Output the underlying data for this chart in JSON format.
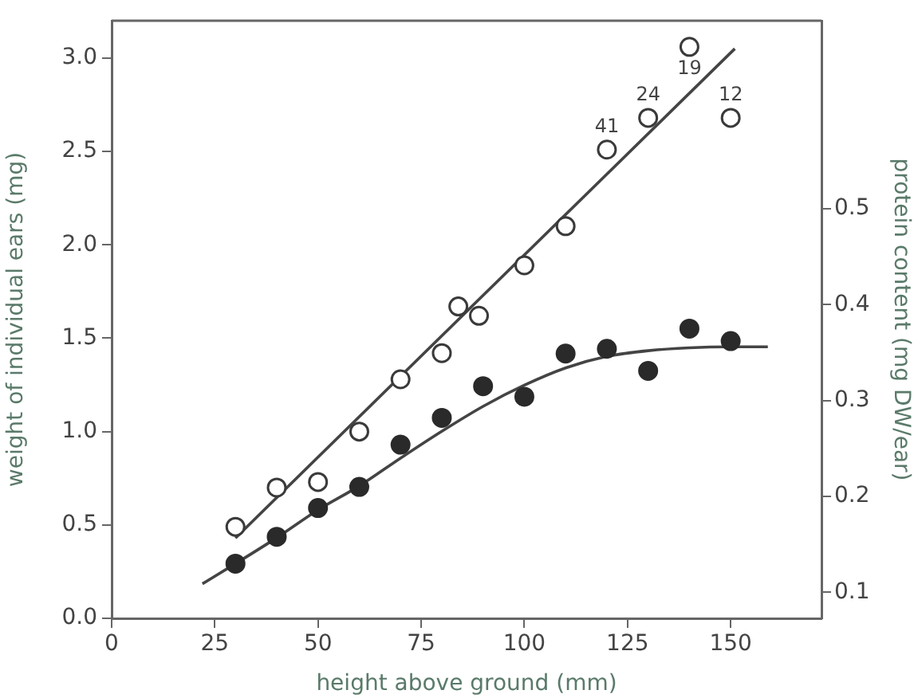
{
  "chart_data": {
    "type": "scatter",
    "xlabel": "height above ground (mm)",
    "ylabel": "weight of individual ears (mg)",
    "y2label": "protein content (mg DW/ear)",
    "xlim": [
      0,
      172
    ],
    "xticks": [
      0,
      25,
      50,
      75,
      100,
      125,
      150
    ],
    "ylim": [
      0,
      3.2
    ],
    "yticks": [
      {
        "value": 0,
        "label": "0.0"
      },
      {
        "value": 0.5,
        "label": "0.5"
      },
      {
        "value": 1,
        "label": "1.0"
      },
      {
        "value": 1.5,
        "label": "1.5"
      },
      {
        "value": 2,
        "label": "2.0"
      },
      {
        "value": 2.5,
        "label": "2.5"
      },
      {
        "value": 3,
        "label": "3.0"
      }
    ],
    "y2lim": [
      0.073,
      0.696
    ],
    "y2ticks": [
      0.1,
      0.2,
      0.3,
      0.4,
      0.5
    ],
    "grid": false,
    "legend": false,
    "marker": "circle",
    "series": [
      {
        "color": "#3a3a3a",
        "x": [
          30,
          40,
          50,
          60,
          70,
          80,
          84,
          89,
          100,
          110,
          120,
          130,
          140,
          150
        ],
        "values": [
          0.49,
          0.7,
          0.73,
          1.0,
          1.28,
          1.42,
          1.67,
          1.62,
          1.89,
          2.1,
          2.51,
          2.68,
          3.06,
          2.68
        ]
      },
      {
        "color": "#2a2a2a",
        "axis": "y2",
        "x": [
          30,
          40,
          50,
          60,
          70,
          80,
          90,
          100,
          110,
          120,
          130,
          140,
          150
        ],
        "values": [
          0.13,
          0.158,
          0.188,
          0.21,
          0.254,
          0.282,
          0.315,
          0.304,
          0.349,
          0.354,
          0.331,
          0.375,
          0.362
        ]
      },
      {
        "type": "line",
        "color": "#444444",
        "marker": "none",
        "x": [
          30,
          151
        ],
        "values": [
          0.43,
          3.05
        ]
      },
      {
        "type": "line",
        "color": "#444444",
        "marker": "none",
        "axis": "y2",
        "x": [
          22,
          30,
          40,
          50,
          60,
          70,
          80,
          90,
          100,
          110,
          120,
          130,
          140,
          150,
          159
        ],
        "values": [
          0.109,
          0.13,
          0.157,
          0.186,
          0.211,
          0.24,
          0.268,
          0.294,
          0.316,
          0.334,
          0.346,
          0.352,
          0.355,
          0.356,
          0.356
        ]
      }
    ],
    "annotations": [
      {
        "text": "41",
        "x": 120,
        "y": 2.51
      },
      {
        "text": "24",
        "x": 130,
        "y": 2.68
      },
      {
        "text": "19",
        "x": 140,
        "y": 3.06
      },
      {
        "text": "12",
        "x": 150,
        "y": 2.68
      }
    ]
  }
}
